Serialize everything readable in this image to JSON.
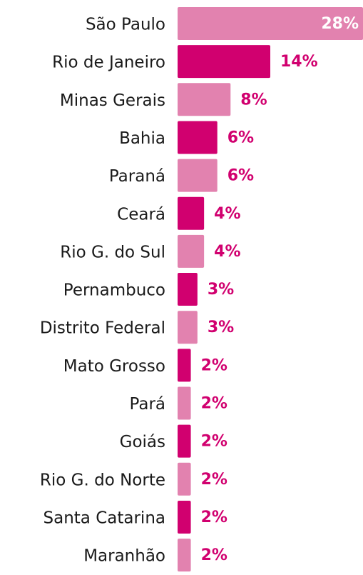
{
  "chart_data": {
    "type": "bar",
    "orientation": "horizontal",
    "categories": [
      "São Paulo",
      "Rio de Janeiro",
      "Minas Gerais",
      "Bahia",
      "Paraná",
      "Ceará",
      "Rio G. do Sul",
      "Pernambuco",
      "Distrito Federal",
      "Mato Grosso",
      "Pará",
      "Goiás",
      "Rio G. do Norte",
      "Santa Catarina",
      "Maranhão"
    ],
    "values": [
      28,
      14,
      8,
      6,
      6,
      4,
      4,
      3,
      3,
      2,
      2,
      2,
      2,
      2,
      2
    ],
    "value_labels": [
      "28%",
      "14%",
      "8%",
      "6%",
      "6%",
      "4%",
      "4%",
      "3%",
      "3%",
      "2%",
      "2%",
      "2%",
      "2%",
      "2%",
      "2%"
    ],
    "colors": [
      "#e282af",
      "#d1006f",
      "#e282af",
      "#d1006f",
      "#e282af",
      "#d1006f",
      "#e282af",
      "#d1006f",
      "#e282af",
      "#d1006f",
      "#e282af",
      "#d1006f",
      "#e282af",
      "#d1006f",
      "#e282af"
    ],
    "label_color": "#d1006f"
  }
}
